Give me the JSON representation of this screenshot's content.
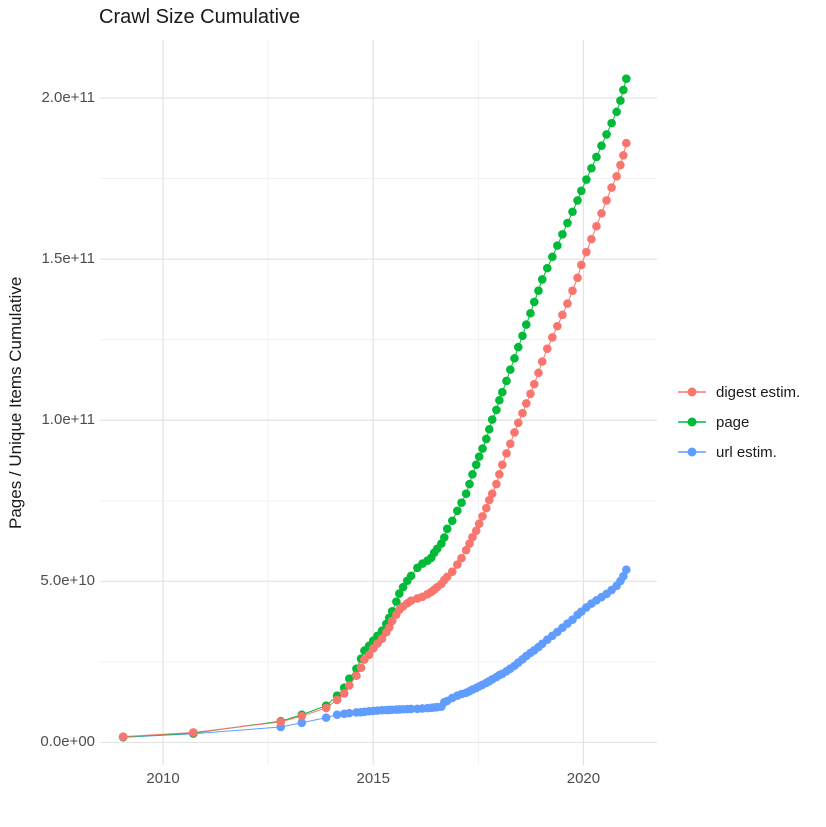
{
  "chart_data": {
    "type": "line",
    "title": "Crawl Size Cumulative",
    "xlabel": "",
    "ylabel": "Pages / Unique Items Cumulative",
    "legend_position": "right",
    "grid": true,
    "xlim": [
      2008.5,
      2021.75
    ],
    "ylim": [
      -7000000000.0,
      218000000000.0
    ],
    "x_ticks": [
      {
        "v": 2010,
        "label": "2010"
      },
      {
        "v": 2015,
        "label": "2015"
      },
      {
        "v": 2020,
        "label": "2020"
      }
    ],
    "x_minor": [
      2012.5,
      2017.5
    ],
    "y_ticks": [
      {
        "v": 0,
        "label": "0.0e+00"
      },
      {
        "v": 50000000000.0,
        "label": "5.0e+10"
      },
      {
        "v": 100000000000.0,
        "label": "1.0e+11"
      },
      {
        "v": 150000000000.0,
        "label": "1.5e+11"
      },
      {
        "v": 200000000000.0,
        "label": "2.0e+11"
      }
    ],
    "y_minor": [
      25000000000.0,
      75000000000.0,
      125000000000.0,
      175000000000.0
    ],
    "x": [
      2009.05,
      2010.72,
      2012.8,
      2013.3,
      2013.88,
      2014.14,
      2014.31,
      2014.43,
      2014.6,
      2014.71,
      2014.79,
      2014.9,
      2015.0,
      2015.1,
      2015.21,
      2015.31,
      2015.38,
      2015.45,
      2015.55,
      2015.62,
      2015.71,
      2015.81,
      2015.9,
      2016.05,
      2016.17,
      2016.29,
      2016.38,
      2016.45,
      2016.52,
      2016.62,
      2016.69,
      2016.76,
      2016.88,
      2017.0,
      2017.1,
      2017.21,
      2017.29,
      2017.36,
      2017.45,
      2017.52,
      2017.6,
      2017.69,
      2017.76,
      2017.83,
      2017.93,
      2018.0,
      2018.07,
      2018.17,
      2018.26,
      2018.36,
      2018.45,
      2018.55,
      2018.64,
      2018.74,
      2018.83,
      2018.93,
      2019.02,
      2019.14,
      2019.26,
      2019.38,
      2019.5,
      2019.62,
      2019.74,
      2019.86,
      2019.95,
      2020.07,
      2020.19,
      2020.31,
      2020.43,
      2020.55,
      2020.67,
      2020.79,
      2020.88,
      2020.95,
      2021.02
    ],
    "series": [
      {
        "name": "digest estim.",
        "color": "#F8766D",
        "y": [
          1800000000.0,
          3100000000.0,
          6400000000.0,
          8200000000.0,
          10700000000.0,
          13200000000.0,
          15200000000.0,
          17700000000.0,
          20700000000.0,
          23200000000.0,
          25700000000.0,
          27200000000.0,
          29200000000.0,
          30700000000.0,
          32200000000.0,
          34200000000.0,
          35700000000.0,
          37700000000.0,
          39700000000.0,
          41200000000.0,
          42200000000.0,
          43200000000.0,
          44000000000.0,
          44700000000.0,
          45200000000.0,
          46000000000.0,
          46700000000.0,
          47400000000.0,
          48200000000.0,
          49200000000.0,
          50400000000.0,
          51400000000.0,
          53000000000.0,
          55200000000.0,
          57200000000.0,
          59700000000.0,
          61700000000.0,
          63700000000.0,
          65700000000.0,
          67900000000.0,
          70200000000.0,
          72700000000.0,
          75200000000.0,
          77200000000.0,
          80200000000.0,
          83200000000.0,
          86200000000.0,
          89700000000.0,
          92700000000.0,
          96200000000.0,
          99200000000.0,
          102200000000.0,
          105200000000.0,
          108200000000.0,
          111200000000.0,
          114700000000.0,
          118200000000.0,
          122200000000.0,
          125700000000.0,
          129200000000.0,
          132700000000.0,
          136200000000.0,
          140200000000.0,
          144200000000.0,
          148200000000.0,
          152200000000.0,
          156200000000.0,
          160200000000.0,
          164200000000.0,
          168200000000.0,
          172200000000.0,
          175700000000.0,
          179200000000.0,
          182200000000.0,
          186000000000.0
        ]
      },
      {
        "name": "page",
        "color": "#00BA38",
        "y": [
          1700000000.0,
          2900000000.0,
          6600000000.0,
          8600000000.0,
          11400000000.0,
          14500000000.0,
          17000000000.0,
          19800000000.0,
          22900000000.0,
          26000000000.0,
          28500000000.0,
          30000000000.0,
          31600000000.0,
          33100000000.0,
          34700000000.0,
          36800000000.0,
          38700000000.0,
          40700000000.0,
          43700000000.0,
          46200000000.0,
          48200000000.0,
          50200000000.0,
          51700000000.0,
          54200000000.0,
          55500000000.0,
          56400000000.0,
          57300000000.0,
          58900000000.0,
          60100000000.0,
          61700000000.0,
          63600000000.0,
          66300000000.0,
          68800000000.0,
          71900000000.0,
          74400000000.0,
          77200000000.0,
          80200000000.0,
          83200000000.0,
          86200000000.0,
          88700000000.0,
          91200000000.0,
          94200000000.0,
          97200000000.0,
          100200000000.0,
          103200000000.0,
          106200000000.0,
          108700000000.0,
          112200000000.0,
          115700000000.0,
          119200000000.0,
          122700000000.0,
          126200000000.0,
          129700000000.0,
          133200000000.0,
          136700000000.0,
          140200000000.0,
          143700000000.0,
          147200000000.0,
          150700000000.0,
          154200000000.0,
          157700000000.0,
          161200000000.0,
          164700000000.0,
          168200000000.0,
          171200000000.0,
          174700000000.0,
          178200000000.0,
          181700000000.0,
          185200000000.0,
          188700000000.0,
          192200000000.0,
          195700000000.0,
          199200000000.0,
          202500000000.0,
          206000000000.0
        ]
      },
      {
        "name": "url estim.",
        "color": "#619CFF",
        "y": [
          1600000000.0,
          2700000000.0,
          4800000000.0,
          6100000000.0,
          7700000000.0,
          8600000000.0,
          8900000000.0,
          9100000000.0,
          9300000000.0,
          9400000000.0,
          9500000000.0,
          9700000000.0,
          9800000000.0,
          9900000000.0,
          10000000000.0,
          10050000000.0,
          10100000000.0,
          10150000000.0,
          10200000000.0,
          10250000000.0,
          10300000000.0,
          10350000000.0,
          10400000000.0,
          10450000000.0,
          10550000000.0,
          10650000000.0,
          10750000000.0,
          10850000000.0,
          10950000000.0,
          11100000000.0,
          12500000000.0,
          12900000000.0,
          13800000000.0,
          14500000000.0,
          15000000000.0,
          15400000000.0,
          15900000000.0,
          16400000000.0,
          16900000000.0,
          17400000000.0,
          17900000000.0,
          18500000000.0,
          19000000000.0,
          19600000000.0,
          20300000000.0,
          20900000000.0,
          21300000000.0,
          22100000000.0,
          22900000000.0,
          23800000000.0,
          24800000000.0,
          25800000000.0,
          26800000000.0,
          27800000000.0,
          28600000000.0,
          29600000000.0,
          30600000000.0,
          31900000000.0,
          33100000000.0,
          34300000000.0,
          35600000000.0,
          36900000000.0,
          38100000000.0,
          39600000000.0,
          40600000000.0,
          41900000000.0,
          43100000000.0,
          44100000000.0,
          45100000000.0,
          46100000000.0,
          47300000000.0,
          48600000000.0,
          50100000000.0,
          51600000000.0,
          53600000000.0
        ]
      }
    ]
  }
}
